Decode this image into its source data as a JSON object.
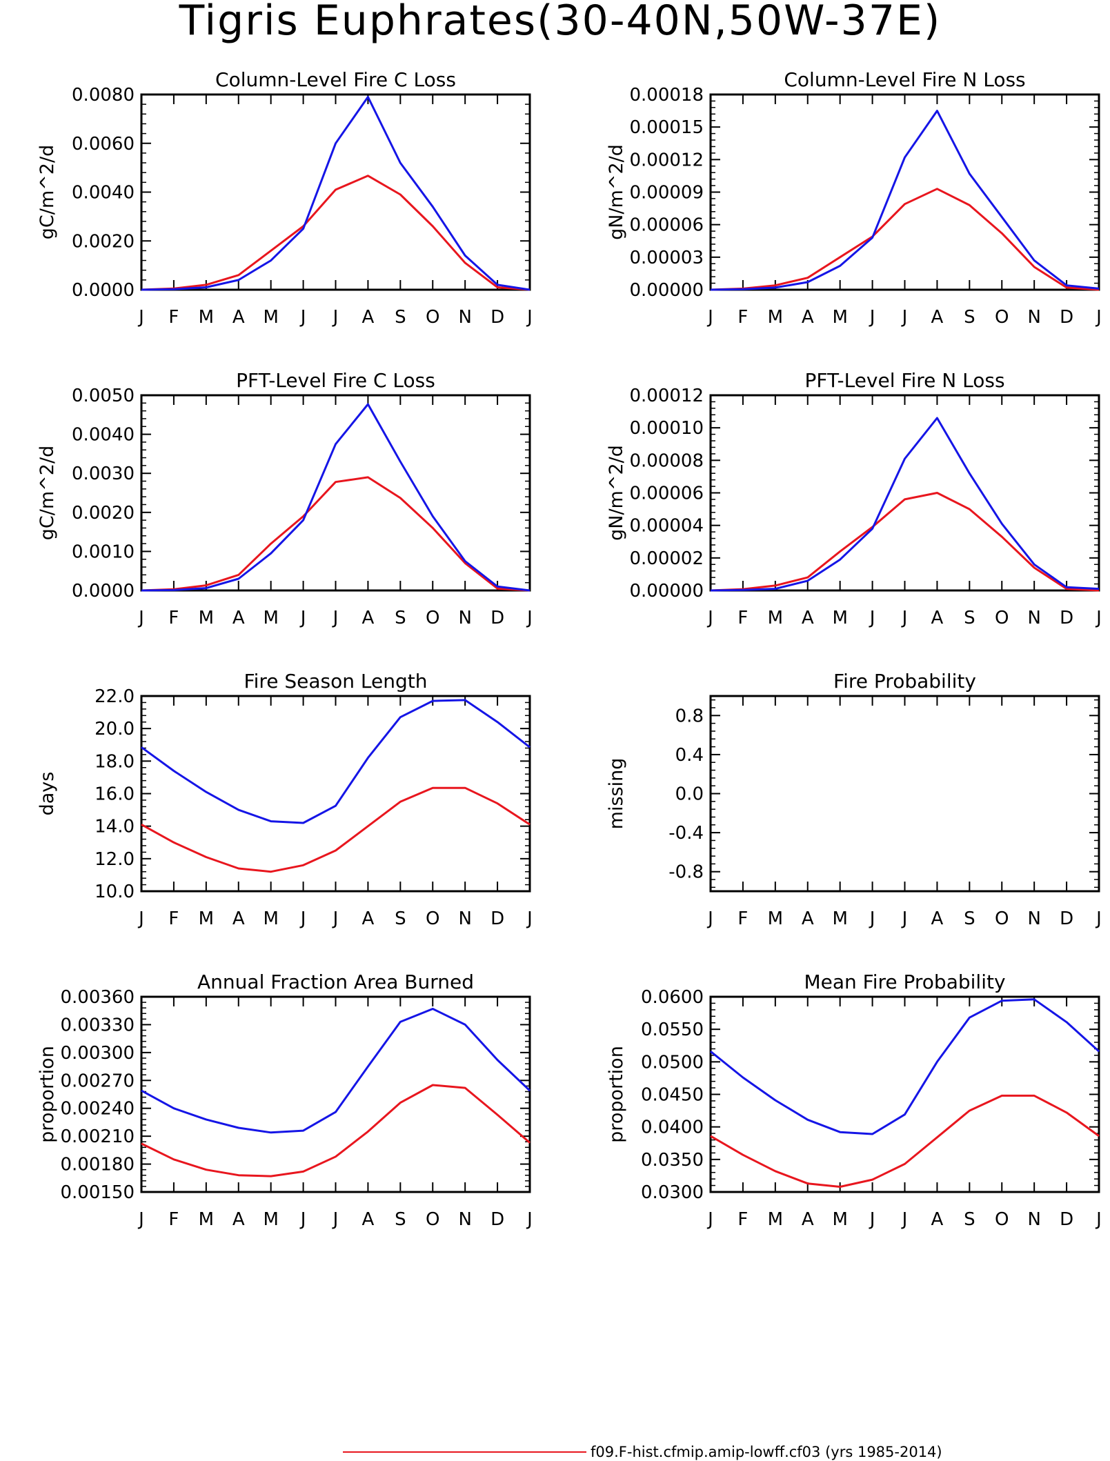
{
  "main_title": "Tigris Euphrates(30-40N,50W-37E)",
  "legend": {
    "red": {
      "label": "f09.F-hist.cfmip.amip-lowff.cf03 (yrs 1985-2014)",
      "color": "#e8161e"
    }
  },
  "colors": {
    "red": "#e8161e",
    "blue": "#1515e6",
    "axis": "#000000"
  },
  "chart_data": [
    {
      "type": "line",
      "title": "Column-Level Fire C Loss",
      "ylabel": "gC/m^2/d",
      "xlabel": "",
      "categories": [
        "J",
        "F",
        "M",
        "A",
        "M",
        "J",
        "J",
        "A",
        "S",
        "O",
        "N",
        "D",
        "J"
      ],
      "ylim": [
        0,
        0.008
      ],
      "yticks": [
        "0.0000",
        "0.0020",
        "0.0040",
        "0.0060",
        "0.0080"
      ],
      "series": [
        {
          "color": "red",
          "values": [
            0.0,
            5e-05,
            0.0002,
            0.0006,
            0.0016,
            0.0026,
            0.0041,
            0.00467,
            0.0039,
            0.0026,
            0.0011,
            0.0001,
            0.0
          ]
        },
        {
          "color": "blue",
          "values": [
            0.0,
            2e-05,
            0.0001,
            0.0004,
            0.0012,
            0.0025,
            0.006,
            0.0079,
            0.0052,
            0.0034,
            0.0014,
            0.0002,
            0.0
          ]
        }
      ]
    },
    {
      "type": "line",
      "title": "Column-Level Fire N Loss",
      "ylabel": "gN/m^2/d",
      "xlabel": "",
      "categories": [
        "J",
        "F",
        "M",
        "A",
        "M",
        "J",
        "J",
        "A",
        "S",
        "O",
        "N",
        "D",
        "J"
      ],
      "ylim": [
        0,
        0.00018
      ],
      "yticks": [
        "0.00000",
        "0.00003",
        "0.00006",
        "0.00009",
        "0.00012",
        "0.00015",
        "0.00018"
      ],
      "series": [
        {
          "color": "red",
          "values": [
            0.0,
            1e-06,
            4e-06,
            1.1e-05,
            3e-05,
            4.9e-05,
            7.9e-05,
            9.3e-05,
            7.8e-05,
            5.2e-05,
            2.1e-05,
            2e-06,
            0.0
          ]
        },
        {
          "color": "blue",
          "values": [
            0.0,
            5e-07,
            2e-06,
            7e-06,
            2.2e-05,
            4.8e-05,
            0.000122,
            0.000165,
            0.000107,
            6.7e-05,
            2.7e-05,
            4e-06,
            1e-06
          ]
        }
      ]
    },
    {
      "type": "line",
      "title": "PFT-Level Fire C Loss",
      "ylabel": "gC/m^2/d",
      "xlabel": "",
      "categories": [
        "J",
        "F",
        "M",
        "A",
        "M",
        "J",
        "J",
        "A",
        "S",
        "O",
        "N",
        "D",
        "J"
      ],
      "ylim": [
        0,
        0.005
      ],
      "yticks": [
        "0.0000",
        "0.0010",
        "0.0020",
        "0.0030",
        "0.0040",
        "0.0050"
      ],
      "series": [
        {
          "color": "red",
          "values": [
            0.0,
            3e-05,
            0.00013,
            0.0004,
            0.0012,
            0.0019,
            0.00278,
            0.0029,
            0.00237,
            0.0016,
            0.0007,
            5e-05,
            0.0
          ]
        },
        {
          "color": "blue",
          "values": [
            0.0,
            1e-05,
            6e-05,
            0.0003,
            0.00095,
            0.0018,
            0.00375,
            0.00477,
            0.0033,
            0.0019,
            0.00075,
            0.0001,
            0.0
          ]
        }
      ]
    },
    {
      "type": "line",
      "title": "PFT-Level Fire N Loss",
      "ylabel": "gN/m^2/d",
      "xlabel": "",
      "categories": [
        "J",
        "F",
        "M",
        "A",
        "M",
        "J",
        "J",
        "A",
        "S",
        "O",
        "N",
        "D",
        "J"
      ],
      "ylim": [
        0,
        0.00012
      ],
      "yticks": [
        "0.00000",
        "0.00002",
        "0.00004",
        "0.00006",
        "0.00008",
        "0.00010",
        "0.00012"
      ],
      "series": [
        {
          "color": "red",
          "values": [
            0.0,
            8e-07,
            3e-06,
            8e-06,
            2.4e-05,
            3.9e-05,
            5.6e-05,
            6e-05,
            5e-05,
            3.3e-05,
            1.4e-05,
            1e-06,
            0.0
          ]
        },
        {
          "color": "blue",
          "values": [
            0.0,
            3e-07,
            1e-06,
            6e-06,
            1.9e-05,
            3.8e-05,
            8.1e-05,
            0.000106,
            7.2e-05,
            4.1e-05,
            1.6e-05,
            2e-06,
            1e-06
          ]
        }
      ]
    },
    {
      "type": "line",
      "title": "Fire Season Length",
      "ylabel": "days",
      "xlabel": "",
      "categories": [
        "J",
        "F",
        "M",
        "A",
        "M",
        "J",
        "J",
        "A",
        "S",
        "O",
        "N",
        "D",
        "J"
      ],
      "ylim": [
        10,
        22
      ],
      "yticks": [
        "10.0",
        "12.0",
        "14.0",
        "16.0",
        "18.0",
        "20.0",
        "22.0"
      ],
      "series": [
        {
          "color": "red",
          "values": [
            14.1,
            13.0,
            12.1,
            11.4,
            11.2,
            11.6,
            12.5,
            14.0,
            15.5,
            16.35,
            16.35,
            15.4,
            14.1
          ]
        },
        {
          "color": "blue",
          "values": [
            18.85,
            17.4,
            16.1,
            15.0,
            14.3,
            14.2,
            15.25,
            18.2,
            20.7,
            21.7,
            21.75,
            20.4,
            18.85
          ]
        }
      ]
    },
    {
      "type": "line",
      "title": "Fire Probability",
      "ylabel": "missing",
      "xlabel": "",
      "categories": [
        "J",
        "F",
        "M",
        "A",
        "M",
        "J",
        "J",
        "A",
        "S",
        "O",
        "N",
        "D",
        "J"
      ],
      "ylim": [
        -1,
        1
      ],
      "yticks": [
        "-0.8",
        "-0.4",
        "0.0",
        "0.4",
        "0.8"
      ],
      "series": []
    },
    {
      "type": "line",
      "title": "Annual Fraction Area Burned",
      "ylabel": "proportion",
      "xlabel": "",
      "categories": [
        "J",
        "F",
        "M",
        "A",
        "M",
        "J",
        "J",
        "A",
        "S",
        "O",
        "N",
        "D",
        "J"
      ],
      "ylim": [
        0.0015,
        0.0036
      ],
      "yticks": [
        "0.00150",
        "0.00180",
        "0.00210",
        "0.00240",
        "0.00270",
        "0.00300",
        "0.00330",
        "0.00360"
      ],
      "series": [
        {
          "color": "red",
          "values": [
            0.00202,
            0.00185,
            0.00174,
            0.00168,
            0.00167,
            0.00172,
            0.00188,
            0.00215,
            0.00246,
            0.00265,
            0.00262,
            0.00233,
            0.00203
          ]
        },
        {
          "color": "blue",
          "values": [
            0.00259,
            0.0024,
            0.00228,
            0.00219,
            0.00214,
            0.00216,
            0.00236,
            0.00285,
            0.00333,
            0.00347,
            0.0033,
            0.00292,
            0.00259
          ]
        }
      ]
    },
    {
      "type": "line",
      "title": "Mean Fire Probability",
      "ylabel": "proportion",
      "xlabel": "",
      "categories": [
        "J",
        "F",
        "M",
        "A",
        "M",
        "J",
        "J",
        "A",
        "S",
        "O",
        "N",
        "D",
        "J"
      ],
      "ylim": [
        0.03,
        0.06
      ],
      "yticks": [
        "0.0300",
        "0.0350",
        "0.0400",
        "0.0450",
        "0.0500",
        "0.0550",
        "0.0600"
      ],
      "series": [
        {
          "color": "red",
          "values": [
            0.0386,
            0.0357,
            0.0332,
            0.0313,
            0.0308,
            0.0319,
            0.0343,
            0.0384,
            0.0425,
            0.0448,
            0.0448,
            0.0422,
            0.0386
          ]
        },
        {
          "color": "blue",
          "values": [
            0.0516,
            0.0476,
            0.0441,
            0.0411,
            0.0392,
            0.0389,
            0.0419,
            0.05,
            0.0568,
            0.0594,
            0.0596,
            0.0561,
            0.0516
          ]
        }
      ]
    }
  ]
}
